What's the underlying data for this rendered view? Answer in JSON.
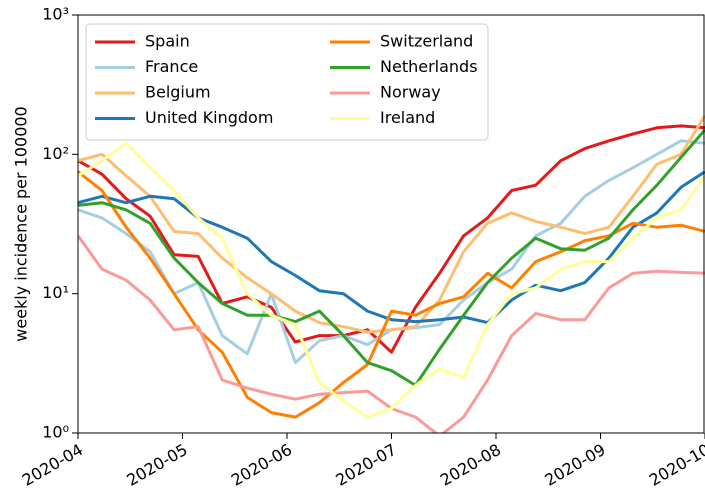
{
  "chart_data": {
    "type": "line",
    "ylabel": "weekly incidence per 100000",
    "log_y": true,
    "x": [
      4,
      4.23,
      4.46,
      4.69,
      4.92,
      5.15,
      5.38,
      5.62,
      5.85,
      6.08,
      6.31,
      6.54,
      6.77,
      7.0,
      7.23,
      7.46,
      7.69,
      7.92,
      8.15,
      8.38,
      8.62,
      8.85,
      9.08,
      9.31,
      9.54,
      9.77,
      10.0
    ],
    "xlim": [
      4,
      10
    ],
    "xticks": [
      {
        "value": 4,
        "label": "2020-04"
      },
      {
        "value": 5,
        "label": "2020-05"
      },
      {
        "value": 6,
        "label": "2020-06"
      },
      {
        "value": 7,
        "label": "2020-07"
      },
      {
        "value": 8,
        "label": "2020-08"
      },
      {
        "value": 9,
        "label": "2020-09"
      },
      {
        "value": 10,
        "label": "2020-10"
      }
    ],
    "ylim": [
      1,
      1000
    ],
    "yticks": [
      {
        "value": 1,
        "label": "10⁰"
      },
      {
        "value": 10,
        "label": "10¹"
      },
      {
        "value": 100,
        "label": "10²"
      },
      {
        "value": 1000,
        "label": "10³"
      }
    ],
    "legend": "upper left",
    "series": [
      {
        "name": "Spain",
        "color": "#e31a1c",
        "values": [
          90,
          72,
          48,
          36,
          19,
          18.5,
          8.5,
          9.5,
          8,
          4.5,
          5,
          5,
          5.5,
          3.8,
          8,
          14,
          26,
          35,
          55,
          60,
          90,
          110,
          125,
          140,
          155,
          160,
          155
        ]
      },
      {
        "name": "France",
        "color": "#a6cee3",
        "values": [
          40,
          35,
          27,
          20,
          10,
          12,
          5,
          3.7,
          10,
          3.2,
          4.6,
          5,
          4.3,
          5.5,
          5.7,
          6,
          9,
          12,
          15,
          26,
          32,
          50,
          65,
          80,
          100,
          125,
          120
        ]
      },
      {
        "name": "Belgium",
        "color": "#fdbf6f",
        "values": [
          90,
          100,
          70,
          50,
          28,
          27,
          18,
          13,
          10,
          7.5,
          6.2,
          5.8,
          5.3,
          5.5,
          5.8,
          9,
          20,
          32,
          38,
          33,
          30,
          27,
          30,
          50,
          85,
          100,
          190
        ]
      },
      {
        "name": "United Kingdom",
        "color": "#1f78b4",
        "values": [
          45,
          50,
          45,
          50,
          48,
          35,
          30,
          25,
          17,
          13.5,
          10.5,
          10,
          7.5,
          6.5,
          6.3,
          6.5,
          6.8,
          6.2,
          9,
          11.5,
          10.5,
          12,
          18,
          30,
          38,
          58,
          75
        ]
      },
      {
        "name": "Switzerland",
        "color": "#ff7f00",
        "values": [
          75,
          55,
          30,
          18,
          10,
          5.5,
          3.8,
          1.8,
          1.4,
          1.3,
          1.65,
          2.3,
          3.1,
          7.5,
          7,
          8.5,
          9.5,
          14,
          11,
          17,
          20,
          24,
          26,
          32,
          30,
          31,
          28
        ]
      },
      {
        "name": "Netherlands",
        "color": "#33a02c",
        "values": [
          43,
          45,
          40,
          32,
          18,
          12,
          8.5,
          7,
          7,
          6.3,
          7.5,
          5,
          3.2,
          2.8,
          2.2,
          4,
          7,
          12,
          18,
          25,
          21,
          20.5,
          25,
          40,
          60,
          95,
          150
        ]
      },
      {
        "name": "Norway",
        "color": "#fb9a99",
        "values": [
          26,
          15,
          12.5,
          9,
          5.5,
          5.8,
          2.4,
          2.1,
          1.9,
          1.75,
          1.9,
          1.95,
          2,
          1.5,
          1.3,
          0.95,
          1.3,
          2.4,
          5,
          7.2,
          6.5,
          6.5,
          11,
          14,
          14.5,
          14.2,
          14
        ]
      },
      {
        "name": "Ireland",
        "color": "#ffff99",
        "values": [
          70,
          90,
          120,
          80,
          55,
          35,
          25,
          10,
          7,
          6,
          2.3,
          1.7,
          1.3,
          1.5,
          2.2,
          2.9,
          2.5,
          6,
          10,
          11,
          15,
          17,
          17,
          25,
          35,
          40,
          70
        ]
      }
    ]
  }
}
